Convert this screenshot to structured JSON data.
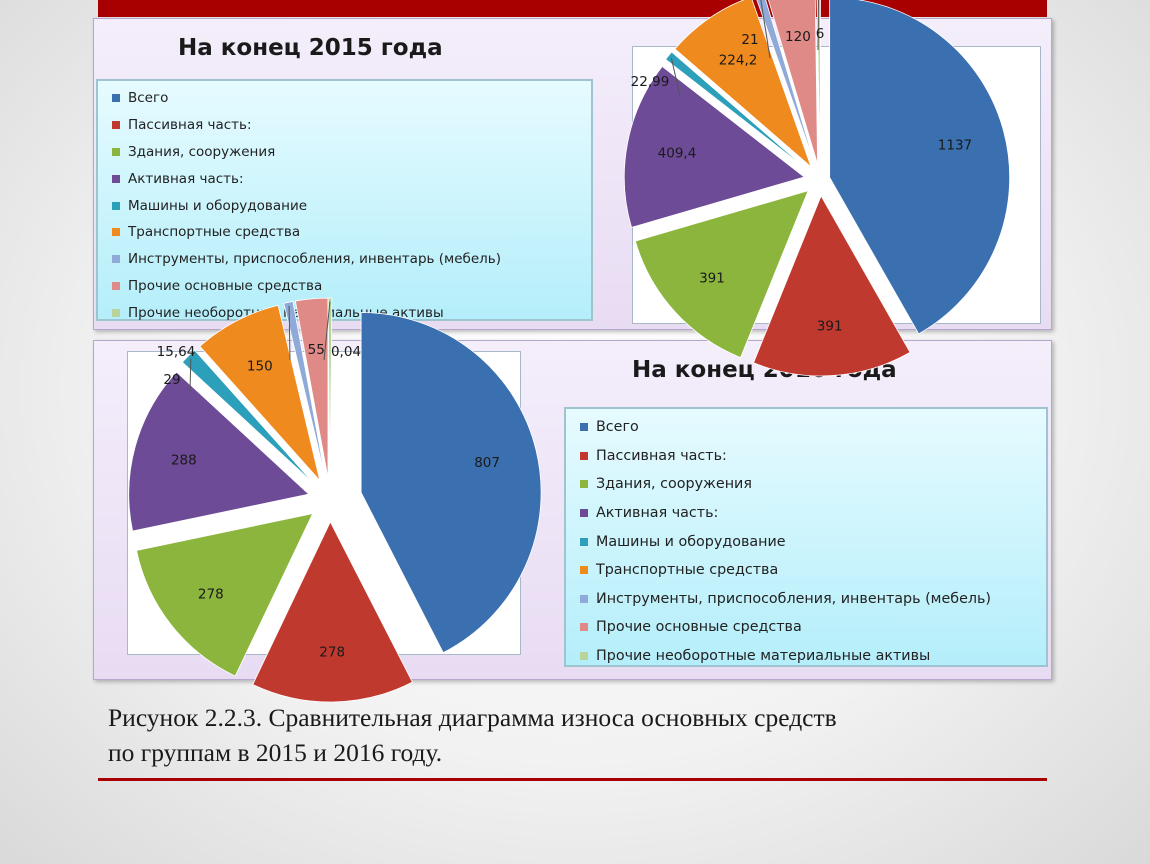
{
  "caption": {
    "line1": "Рисунок 2.2.3. Сравнительная диаграмма износа основных средств",
    "line2": "по группам в 2015 и 2016 году."
  },
  "colors": {
    "accent_bar": "#a80000",
    "series": [
      "#3a6fb0",
      "#c0392f",
      "#8cb53d",
      "#6d4b96",
      "#2c9fba",
      "#ef8a1e",
      "#8fa9d8",
      "#e08a87",
      "#b8d49a"
    ]
  },
  "chart_data": [
    {
      "type": "pie",
      "title": "На конец 2015 года",
      "legend_position": "left",
      "categories": [
        "Всего",
        "Пассивная часть:",
        "Здания, сооружения",
        "Активная часть:",
        "Машины и оборудование",
        "Транспортные средства",
        "Инструменты, приспособления, инвентарь (мебель)",
        "Прочие основные средства",
        "Прочие необоротные материальные активы"
      ],
      "values": [
        1137,
        391,
        391,
        409.4,
        22.99,
        224.2,
        21,
        120,
        6
      ],
      "labels": [
        "1137",
        "391",
        "391",
        "409,4",
        "22,99",
        "224,2",
        "21",
        "120",
        "6"
      ]
    },
    {
      "type": "pie",
      "title": "На конец 2016 года",
      "legend_position": "right",
      "categories": [
        "Всего",
        "Пассивная часть:",
        "Здания, сооружения",
        "Активная часть:",
        "Машины и оборудование",
        "Транспортные средства",
        "Инструменты, приспособления, инвентарь (мебель)",
        "Прочие основные средства",
        "Прочие необоротные материальные активы"
      ],
      "values": [
        807,
        278,
        278,
        288,
        29,
        150,
        15.64,
        55,
        0.04
      ],
      "labels": [
        "807",
        "278",
        "278",
        "288",
        "29",
        "150",
        "15,64",
        "55",
        "0,04"
      ]
    }
  ]
}
